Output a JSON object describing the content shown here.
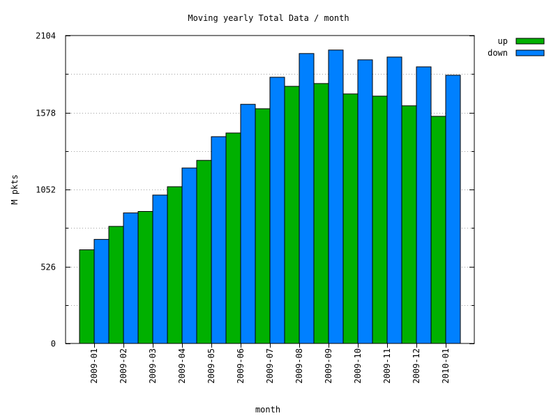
{
  "chart_data": {
    "type": "bar",
    "title": "Moving yearly Total Data / month",
    "xlabel": "month",
    "ylabel": "M pkts",
    "ylim": [
      0,
      2104
    ],
    "yticks": [
      0,
      526,
      1052,
      1578,
      2104
    ],
    "ytick_labels": [
      "0",
      "526",
      "1052",
      "1578",
      "2104"
    ],
    "grid": true,
    "legend_position": "outside-top-right",
    "categories": [
      "2009-01",
      "2009-02",
      "2009-03",
      "2009-04",
      "2009-05",
      "2009-06",
      "2009-07",
      "2009-08",
      "2009-09",
      "2009-10",
      "2009-11",
      "2009-12",
      "2010-01"
    ],
    "series": [
      {
        "name": "up",
        "color": "#00b000",
        "values": [
          640,
          800,
          902,
          1071,
          1251,
          1438,
          1604,
          1757,
          1776,
          1705,
          1690,
          1624,
          1552
        ]
      },
      {
        "name": "down",
        "color": "#0080ff",
        "values": [
          711,
          892,
          1014,
          1199,
          1413,
          1634,
          1819,
          1981,
          2005,
          1938,
          1957,
          1890,
          1833
        ]
      }
    ]
  }
}
